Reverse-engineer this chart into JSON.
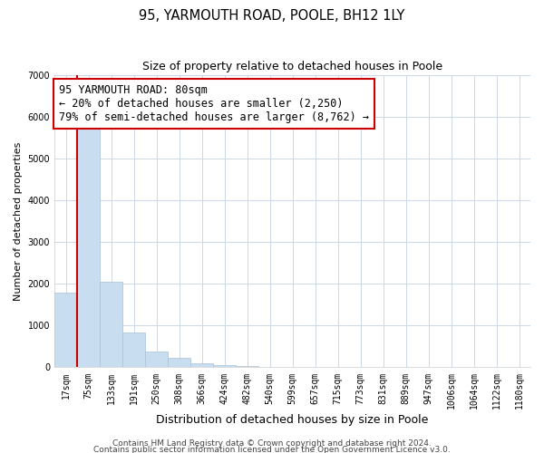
{
  "title": "95, YARMOUTH ROAD, POOLE, BH12 1LY",
  "subtitle": "Size of property relative to detached houses in Poole",
  "xlabel": "Distribution of detached houses by size in Poole",
  "ylabel": "Number of detached properties",
  "bar_labels": [
    "17sqm",
    "75sqm",
    "133sqm",
    "191sqm",
    "250sqm",
    "308sqm",
    "366sqm",
    "424sqm",
    "482sqm",
    "540sqm",
    "599sqm",
    "657sqm",
    "715sqm",
    "773sqm",
    "831sqm",
    "889sqm",
    "947sqm",
    "1006sqm",
    "1064sqm",
    "1122sqm",
    "1180sqm"
  ],
  "bar_values": [
    1780,
    5780,
    2050,
    830,
    370,
    230,
    105,
    55,
    30,
    10,
    5,
    2,
    1,
    0,
    0,
    0,
    0,
    0,
    0,
    0,
    0
  ],
  "bar_color": "#c9ddf0",
  "bar_edge_color": "#a8c0d8",
  "vline_color": "#cc0000",
  "annotation_text": "95 YARMOUTH ROAD: 80sqm\n← 20% of detached houses are smaller (2,250)\n79% of semi-detached houses are larger (8,762) →",
  "annotation_box_color": "#ffffff",
  "annotation_box_edge": "#cc0000",
  "ylim": [
    0,
    7000
  ],
  "yticks": [
    0,
    1000,
    2000,
    3000,
    4000,
    5000,
    6000,
    7000
  ],
  "footer_line1": "Contains HM Land Registry data © Crown copyright and database right 2024.",
  "footer_line2": "Contains public sector information licensed under the Open Government Licence v3.0.",
  "bg_color": "#ffffff",
  "grid_color": "#cdd8e8",
  "title_fontsize": 10.5,
  "subtitle_fontsize": 9,
  "xlabel_fontsize": 9,
  "ylabel_fontsize": 8,
  "tick_fontsize": 7,
  "annotation_fontsize": 8.5,
  "footer_fontsize": 6.5
}
